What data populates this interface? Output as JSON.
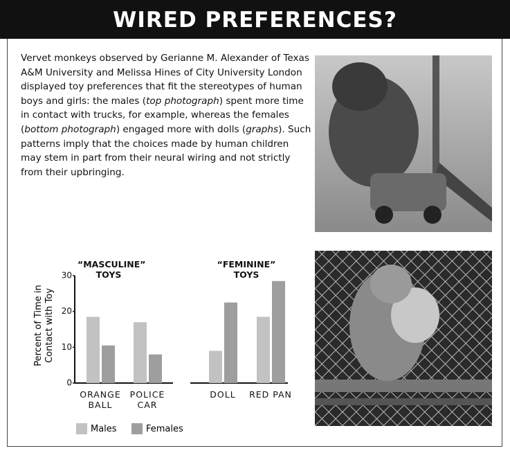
{
  "header": {
    "title": "WIRED PREFERENCES?"
  },
  "body": {
    "segments": [
      {
        "text": "Vervet monkeys observed by Gerianne M. Alexander of Texas A&M University and Melissa Hines of City University London displayed toy preferences that fit the stereotypes of human boys and girls: the males ("
      },
      {
        "text": "top photograph",
        "italic": true
      },
      {
        "text": ") spent more time in contact with trucks, for example, whereas the females ("
      },
      {
        "text": "bottom photograph",
        "italic": true
      },
      {
        "text": ") engaged more with dolls ("
      },
      {
        "text": "graphs",
        "italic": true
      },
      {
        "text": "). Such patterns imply that the choices made by human children may stem in part from their neural wiring and not strictly from their upbringing."
      }
    ]
  },
  "chart_data": {
    "type": "bar",
    "ylabel": "Percent of Time in Contact with Toy",
    "groups": [
      {
        "label": "“MASCULINE” TOYS"
      },
      {
        "label": "“FEMININE” TOYS"
      }
    ],
    "categories": [
      "ORANGE BALL",
      "POLICE CAR",
      "DOLL",
      "RED PAN"
    ],
    "series": [
      {
        "name": "Males",
        "color": "#c2c2c2",
        "values": [
          18.5,
          17,
          9,
          18.5
        ]
      },
      {
        "name": "Females",
        "color": "#9e9e9e",
        "values": [
          10.5,
          8,
          22.5,
          28.5
        ]
      }
    ],
    "ylim": [
      0,
      30
    ],
    "yticks": [
      0,
      10,
      20,
      30
    ]
  }
}
